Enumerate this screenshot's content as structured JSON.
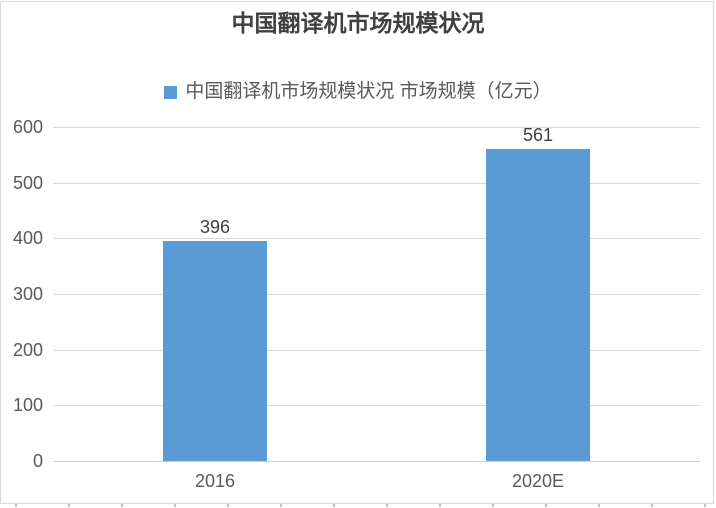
{
  "chart": {
    "colors": {
      "bar": "#5B9BD5",
      "gridline": "#D9D9D9",
      "axis_line": "#CFCFCF",
      "frame_border": "#D9D9D9",
      "title_text": "#404040",
      "data_label_text": "#404040",
      "axis_text": "#595959",
      "sheet_tick": "#BFBFBF"
    }
  },
  "chart_data": {
    "type": "bar",
    "title": "中国翻译机市场规模状况",
    "series_name": "中国翻译机市场规模状况 市场规模（亿元）",
    "legend": [
      "中国翻译机市场规模状况 市场规模（亿元）"
    ],
    "legend_position": "top",
    "categories": [
      "2016",
      "2020E"
    ],
    "values": [
      396,
      561
    ],
    "data_labels": [
      "396",
      "561"
    ],
    "xlabel": "",
    "ylabel": "",
    "ylim": [
      0,
      600
    ],
    "yticks": [
      0,
      100,
      200,
      300,
      400,
      500,
      600
    ],
    "grid": true
  }
}
